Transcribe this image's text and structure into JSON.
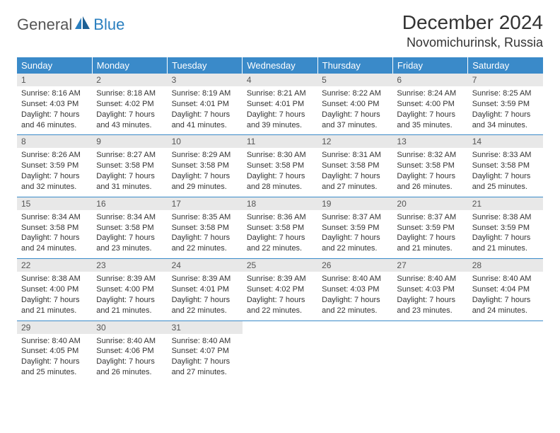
{
  "logo": {
    "part1": "General",
    "part2": "Blue"
  },
  "title": "December 2024",
  "location": "Novomichurinsk, Russia",
  "colors": {
    "header_bg": "#3a8ac9",
    "header_text": "#ffffff",
    "daynum_bg": "#e8e8e8",
    "border": "#3a8ac9",
    "logo_accent": "#2a7fbf"
  },
  "weekdays": [
    "Sunday",
    "Monday",
    "Tuesday",
    "Wednesday",
    "Thursday",
    "Friday",
    "Saturday"
  ],
  "weeks": [
    [
      {
        "n": "1",
        "sunrise": "Sunrise: 8:16 AM",
        "sunset": "Sunset: 4:03 PM",
        "day": "Daylight: 7 hours and 46 minutes."
      },
      {
        "n": "2",
        "sunrise": "Sunrise: 8:18 AM",
        "sunset": "Sunset: 4:02 PM",
        "day": "Daylight: 7 hours and 43 minutes."
      },
      {
        "n": "3",
        "sunrise": "Sunrise: 8:19 AM",
        "sunset": "Sunset: 4:01 PM",
        "day": "Daylight: 7 hours and 41 minutes."
      },
      {
        "n": "4",
        "sunrise": "Sunrise: 8:21 AM",
        "sunset": "Sunset: 4:01 PM",
        "day": "Daylight: 7 hours and 39 minutes."
      },
      {
        "n": "5",
        "sunrise": "Sunrise: 8:22 AM",
        "sunset": "Sunset: 4:00 PM",
        "day": "Daylight: 7 hours and 37 minutes."
      },
      {
        "n": "6",
        "sunrise": "Sunrise: 8:24 AM",
        "sunset": "Sunset: 4:00 PM",
        "day": "Daylight: 7 hours and 35 minutes."
      },
      {
        "n": "7",
        "sunrise": "Sunrise: 8:25 AM",
        "sunset": "Sunset: 3:59 PM",
        "day": "Daylight: 7 hours and 34 minutes."
      }
    ],
    [
      {
        "n": "8",
        "sunrise": "Sunrise: 8:26 AM",
        "sunset": "Sunset: 3:59 PM",
        "day": "Daylight: 7 hours and 32 minutes."
      },
      {
        "n": "9",
        "sunrise": "Sunrise: 8:27 AM",
        "sunset": "Sunset: 3:58 PM",
        "day": "Daylight: 7 hours and 31 minutes."
      },
      {
        "n": "10",
        "sunrise": "Sunrise: 8:29 AM",
        "sunset": "Sunset: 3:58 PM",
        "day": "Daylight: 7 hours and 29 minutes."
      },
      {
        "n": "11",
        "sunrise": "Sunrise: 8:30 AM",
        "sunset": "Sunset: 3:58 PM",
        "day": "Daylight: 7 hours and 28 minutes."
      },
      {
        "n": "12",
        "sunrise": "Sunrise: 8:31 AM",
        "sunset": "Sunset: 3:58 PM",
        "day": "Daylight: 7 hours and 27 minutes."
      },
      {
        "n": "13",
        "sunrise": "Sunrise: 8:32 AM",
        "sunset": "Sunset: 3:58 PM",
        "day": "Daylight: 7 hours and 26 minutes."
      },
      {
        "n": "14",
        "sunrise": "Sunrise: 8:33 AM",
        "sunset": "Sunset: 3:58 PM",
        "day": "Daylight: 7 hours and 25 minutes."
      }
    ],
    [
      {
        "n": "15",
        "sunrise": "Sunrise: 8:34 AM",
        "sunset": "Sunset: 3:58 PM",
        "day": "Daylight: 7 hours and 24 minutes."
      },
      {
        "n": "16",
        "sunrise": "Sunrise: 8:34 AM",
        "sunset": "Sunset: 3:58 PM",
        "day": "Daylight: 7 hours and 23 minutes."
      },
      {
        "n": "17",
        "sunrise": "Sunrise: 8:35 AM",
        "sunset": "Sunset: 3:58 PM",
        "day": "Daylight: 7 hours and 22 minutes."
      },
      {
        "n": "18",
        "sunrise": "Sunrise: 8:36 AM",
        "sunset": "Sunset: 3:58 PM",
        "day": "Daylight: 7 hours and 22 minutes."
      },
      {
        "n": "19",
        "sunrise": "Sunrise: 8:37 AM",
        "sunset": "Sunset: 3:59 PM",
        "day": "Daylight: 7 hours and 22 minutes."
      },
      {
        "n": "20",
        "sunrise": "Sunrise: 8:37 AM",
        "sunset": "Sunset: 3:59 PM",
        "day": "Daylight: 7 hours and 21 minutes."
      },
      {
        "n": "21",
        "sunrise": "Sunrise: 8:38 AM",
        "sunset": "Sunset: 3:59 PM",
        "day": "Daylight: 7 hours and 21 minutes."
      }
    ],
    [
      {
        "n": "22",
        "sunrise": "Sunrise: 8:38 AM",
        "sunset": "Sunset: 4:00 PM",
        "day": "Daylight: 7 hours and 21 minutes."
      },
      {
        "n": "23",
        "sunrise": "Sunrise: 8:39 AM",
        "sunset": "Sunset: 4:00 PM",
        "day": "Daylight: 7 hours and 21 minutes."
      },
      {
        "n": "24",
        "sunrise": "Sunrise: 8:39 AM",
        "sunset": "Sunset: 4:01 PM",
        "day": "Daylight: 7 hours and 22 minutes."
      },
      {
        "n": "25",
        "sunrise": "Sunrise: 8:39 AM",
        "sunset": "Sunset: 4:02 PM",
        "day": "Daylight: 7 hours and 22 minutes."
      },
      {
        "n": "26",
        "sunrise": "Sunrise: 8:40 AM",
        "sunset": "Sunset: 4:03 PM",
        "day": "Daylight: 7 hours and 22 minutes."
      },
      {
        "n": "27",
        "sunrise": "Sunrise: 8:40 AM",
        "sunset": "Sunset: 4:03 PM",
        "day": "Daylight: 7 hours and 23 minutes."
      },
      {
        "n": "28",
        "sunrise": "Sunrise: 8:40 AM",
        "sunset": "Sunset: 4:04 PM",
        "day": "Daylight: 7 hours and 24 minutes."
      }
    ],
    [
      {
        "n": "29",
        "sunrise": "Sunrise: 8:40 AM",
        "sunset": "Sunset: 4:05 PM",
        "day": "Daylight: 7 hours and 25 minutes."
      },
      {
        "n": "30",
        "sunrise": "Sunrise: 8:40 AM",
        "sunset": "Sunset: 4:06 PM",
        "day": "Daylight: 7 hours and 26 minutes."
      },
      {
        "n": "31",
        "sunrise": "Sunrise: 8:40 AM",
        "sunset": "Sunset: 4:07 PM",
        "day": "Daylight: 7 hours and 27 minutes."
      },
      null,
      null,
      null,
      null
    ]
  ]
}
